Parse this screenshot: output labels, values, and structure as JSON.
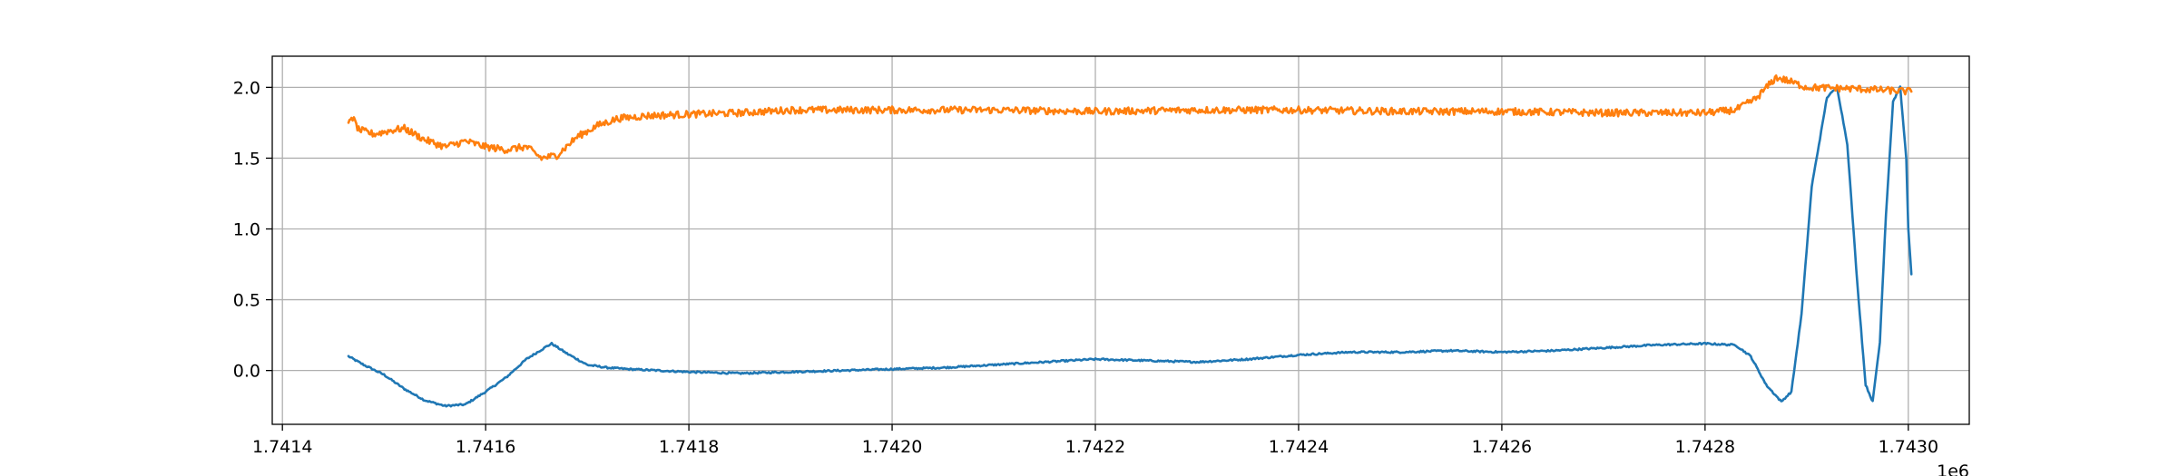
{
  "chart_data": {
    "type": "line",
    "title": "",
    "xlabel": "",
    "ylabel": "",
    "x_offset_label": "1e6",
    "xlim": [
      1741390,
      1743060
    ],
    "ylim": [
      -0.38,
      2.22
    ],
    "grid": true,
    "legend": "none",
    "x_ticks": [
      1741400,
      1741600,
      1741800,
      1742000,
      1742200,
      1742400,
      1742600,
      1742800,
      1743000
    ],
    "x_tick_labels": [
      "1.7414",
      "1.7416",
      "1.7418",
      "1.7420",
      "1.7422",
      "1.7424",
      "1.7426",
      "1.7428",
      "1.7430"
    ],
    "y_ticks": [
      0.0,
      0.5,
      1.0,
      1.5,
      2.0
    ],
    "y_tick_labels": [
      "0.0",
      "0.5",
      "1.0",
      "1.5",
      "2.0"
    ],
    "series": [
      {
        "color": "#1f77b4",
        "noise": 0.006,
        "points": [
          [
            1741465,
            0.1
          ],
          [
            1741480,
            0.04
          ],
          [
            1741500,
            -0.03
          ],
          [
            1741520,
            -0.13
          ],
          [
            1741540,
            -0.21
          ],
          [
            1741560,
            -0.25
          ],
          [
            1741580,
            -0.24
          ],
          [
            1741600,
            -0.15
          ],
          [
            1741620,
            -0.05
          ],
          [
            1741640,
            0.08
          ],
          [
            1741660,
            0.17
          ],
          [
            1741665,
            0.19
          ],
          [
            1741680,
            0.12
          ],
          [
            1741700,
            0.04
          ],
          [
            1741720,
            0.02
          ],
          [
            1741740,
            0.01
          ],
          [
            1741800,
            -0.01
          ],
          [
            1741850,
            -0.02
          ],
          [
            1741900,
            -0.01
          ],
          [
            1741950,
            0.0
          ],
          [
            1742000,
            0.01
          ],
          [
            1742050,
            0.02
          ],
          [
            1742100,
            0.04
          ],
          [
            1742150,
            0.06
          ],
          [
            1742200,
            0.08
          ],
          [
            1742250,
            0.07
          ],
          [
            1742300,
            0.06
          ],
          [
            1742350,
            0.08
          ],
          [
            1742400,
            0.11
          ],
          [
            1742450,
            0.13
          ],
          [
            1742500,
            0.13
          ],
          [
            1742550,
            0.14
          ],
          [
            1742600,
            0.13
          ],
          [
            1742650,
            0.14
          ],
          [
            1742700,
            0.16
          ],
          [
            1742750,
            0.18
          ],
          [
            1742800,
            0.19
          ],
          [
            1742830,
            0.18
          ],
          [
            1742845,
            0.1
          ],
          [
            1742860,
            -0.1
          ],
          [
            1742875,
            -0.22
          ],
          [
            1742885,
            -0.15
          ],
          [
            1742895,
            0.4
          ],
          [
            1742905,
            1.3
          ],
          [
            1742920,
            1.93
          ],
          [
            1742930,
            2.0
          ],
          [
            1742940,
            1.6
          ],
          [
            1742950,
            0.6
          ],
          [
            1742958,
            -0.1
          ],
          [
            1742965,
            -0.22
          ],
          [
            1742972,
            0.2
          ],
          [
            1742978,
            1.1
          ],
          [
            1742985,
            1.9
          ],
          [
            1742992,
            2.0
          ],
          [
            1742998,
            1.5
          ],
          [
            1743000,
            1.0
          ],
          [
            1743003,
            0.68
          ]
        ]
      },
      {
        "color": "#ff7f0e",
        "noise": 0.025,
        "points": [
          [
            1741465,
            1.73
          ],
          [
            1741468,
            1.8
          ],
          [
            1741475,
            1.7
          ],
          [
            1741490,
            1.67
          ],
          [
            1741510,
            1.7
          ],
          [
            1741520,
            1.71
          ],
          [
            1741540,
            1.63
          ],
          [
            1741560,
            1.58
          ],
          [
            1741580,
            1.62
          ],
          [
            1741600,
            1.58
          ],
          [
            1741620,
            1.56
          ],
          [
            1741640,
            1.58
          ],
          [
            1741655,
            1.5
          ],
          [
            1741670,
            1.52
          ],
          [
            1741690,
            1.65
          ],
          [
            1741710,
            1.73
          ],
          [
            1741730,
            1.78
          ],
          [
            1741760,
            1.8
          ],
          [
            1741800,
            1.81
          ],
          [
            1741850,
            1.82
          ],
          [
            1741900,
            1.84
          ],
          [
            1741950,
            1.84
          ],
          [
            1742000,
            1.84
          ],
          [
            1742100,
            1.84
          ],
          [
            1742200,
            1.83
          ],
          [
            1742300,
            1.84
          ],
          [
            1742400,
            1.84
          ],
          [
            1742500,
            1.83
          ],
          [
            1742600,
            1.83
          ],
          [
            1742700,
            1.82
          ],
          [
            1742800,
            1.82
          ],
          [
            1742830,
            1.84
          ],
          [
            1742850,
            1.92
          ],
          [
            1742870,
            2.07
          ],
          [
            1742880,
            2.05
          ],
          [
            1742900,
            2.0
          ],
          [
            1742950,
            1.99
          ],
          [
            1743003,
            1.97
          ]
        ]
      }
    ]
  }
}
